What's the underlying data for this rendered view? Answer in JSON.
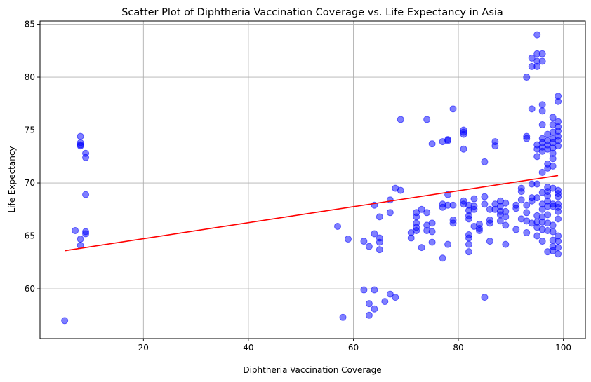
{
  "chart_data": {
    "type": "scatter",
    "title": "Scatter Plot of Diphtheria Vaccination Coverage vs. Life Expectancy in Asia",
    "xlabel": "Diphtheria Vaccination Coverage",
    "ylabel": "Life Expectancy",
    "xlim": [
      0.3,
      104.2
    ],
    "ylim": [
      55.3,
      85.3
    ],
    "xticks": [
      20,
      40,
      60,
      80,
      100
    ],
    "xtick_labels": [
      "20",
      "40",
      "60",
      "80",
      "100"
    ],
    "yticks": [
      60,
      65,
      70,
      75,
      80,
      85
    ],
    "ytick_labels": [
      "60",
      "65",
      "70",
      "75",
      "80",
      "85"
    ],
    "grid": true,
    "colors": {
      "points": "#0000ff",
      "trend": "#ff0000",
      "grid": "#b0b0b0"
    },
    "points": [
      [
        5,
        57.0
      ],
      [
        7,
        65.5
      ],
      [
        8,
        74.4
      ],
      [
        8,
        73.8
      ],
      [
        8,
        73.6
      ],
      [
        8,
        73.5
      ],
      [
        8,
        64.7
      ],
      [
        8,
        64.1
      ],
      [
        9,
        72.8
      ],
      [
        9,
        72.4
      ],
      [
        9,
        68.9
      ],
      [
        9,
        65.4
      ],
      [
        9,
        65.2
      ],
      [
        57,
        65.9
      ],
      [
        58,
        57.3
      ],
      [
        59,
        64.7
      ],
      [
        62,
        64.5
      ],
      [
        62,
        59.9
      ],
      [
        63,
        64.0
      ],
      [
        63,
        58.6
      ],
      [
        63,
        57.5
      ],
      [
        64,
        67.9
      ],
      [
        64,
        65.2
      ],
      [
        64,
        59.9
      ],
      [
        64,
        58.1
      ],
      [
        65,
        66.8
      ],
      [
        65,
        64.8
      ],
      [
        65,
        64.4
      ],
      [
        65,
        63.7
      ],
      [
        66,
        58.8
      ],
      [
        67,
        68.4
      ],
      [
        67,
        67.2
      ],
      [
        67,
        59.5
      ],
      [
        68,
        69.5
      ],
      [
        68,
        59.2
      ],
      [
        69,
        76.0
      ],
      [
        69,
        69.3
      ],
      [
        71,
        65.3
      ],
      [
        71,
        64.8
      ],
      [
        72,
        67.2
      ],
      [
        72,
        66.8
      ],
      [
        72,
        66.2
      ],
      [
        72,
        65.8
      ],
      [
        72,
        65.5
      ],
      [
        73,
        67.5
      ],
      [
        73,
        63.9
      ],
      [
        74,
        76.0
      ],
      [
        74,
        67.2
      ],
      [
        74,
        66.0
      ],
      [
        74,
        65.5
      ],
      [
        75,
        73.7
      ],
      [
        75,
        66.2
      ],
      [
        75,
        65.4
      ],
      [
        75,
        64.4
      ],
      [
        77,
        73.9
      ],
      [
        77,
        68.0
      ],
      [
        77,
        67.7
      ],
      [
        77,
        62.9
      ],
      [
        78,
        74.0
      ],
      [
        78,
        74.1
      ],
      [
        78,
        68.9
      ],
      [
        78,
        67.9
      ],
      [
        78,
        64.2
      ],
      [
        79,
        77.0
      ],
      [
        79,
        67.9
      ],
      [
        79,
        66.5
      ],
      [
        79,
        66.2
      ],
      [
        81,
        75.0
      ],
      [
        81,
        74.8
      ],
      [
        81,
        74.6
      ],
      [
        81,
        73.2
      ],
      [
        81,
        68.3
      ],
      [
        81,
        68.0
      ],
      [
        82,
        67.9
      ],
      [
        82,
        67.4
      ],
      [
        82,
        66.9
      ],
      [
        82,
        66.6
      ],
      [
        82,
        65.1
      ],
      [
        82,
        64.8
      ],
      [
        82,
        64.2
      ],
      [
        82,
        63.5
      ],
      [
        83,
        68.5
      ],
      [
        83,
        67.8
      ],
      [
        83,
        67.5
      ],
      [
        83,
        65.9
      ],
      [
        84,
        66.1
      ],
      [
        84,
        65.7
      ],
      [
        84,
        65.5
      ],
      [
        85,
        72.0
      ],
      [
        85,
        68.7
      ],
      [
        85,
        68.0
      ],
      [
        85,
        59.2
      ],
      [
        86,
        67.5
      ],
      [
        86,
        66.5
      ],
      [
        86,
        66.2
      ],
      [
        86,
        64.5
      ],
      [
        87,
        73.9
      ],
      [
        87,
        73.5
      ],
      [
        87,
        68.0
      ],
      [
        87,
        67.5
      ],
      [
        88,
        68.3
      ],
      [
        88,
        67.8
      ],
      [
        88,
        67.3
      ],
      [
        88,
        67.0
      ],
      [
        88,
        66.4
      ],
      [
        89,
        68.1
      ],
      [
        89,
        67.3
      ],
      [
        89,
        66.8
      ],
      [
        89,
        66.0
      ],
      [
        89,
        64.2
      ],
      [
        91,
        67.9
      ],
      [
        91,
        67.6
      ],
      [
        91,
        65.6
      ],
      [
        92,
        69.5
      ],
      [
        92,
        69.2
      ],
      [
        92,
        68.4
      ],
      [
        92,
        66.6
      ],
      [
        93,
        80.0
      ],
      [
        93,
        74.4
      ],
      [
        93,
        74.2
      ],
      [
        93,
        67.9
      ],
      [
        93,
        67.2
      ],
      [
        93,
        66.4
      ],
      [
        93,
        65.3
      ],
      [
        94,
        81.8
      ],
      [
        94,
        81.0
      ],
      [
        94,
        77.0
      ],
      [
        94,
        69.9
      ],
      [
        94,
        68.6
      ],
      [
        94,
        68.3
      ],
      [
        94,
        66.2
      ],
      [
        95,
        84.0
      ],
      [
        95,
        82.2
      ],
      [
        95,
        81.5
      ],
      [
        95,
        81.0
      ],
      [
        95,
        73.6
      ],
      [
        95,
        73.2
      ],
      [
        95,
        72.5
      ],
      [
        95,
        69.9
      ],
      [
        95,
        68.6
      ],
      [
        95,
        66.9
      ],
      [
        95,
        66.3
      ],
      [
        95,
        65.8
      ],
      [
        95,
        65.0
      ],
      [
        96,
        82.2
      ],
      [
        96,
        81.5
      ],
      [
        96,
        77.4
      ],
      [
        96,
        76.8
      ],
      [
        96,
        75.5
      ],
      [
        96,
        74.2
      ],
      [
        96,
        73.8
      ],
      [
        96,
        73.4
      ],
      [
        96,
        73.0
      ],
      [
        96,
        71.0
      ],
      [
        96,
        69.1
      ],
      [
        96,
        68.0
      ],
      [
        96,
        67.5
      ],
      [
        96,
        66.8
      ],
      [
        96,
        66.3
      ],
      [
        96,
        65.6
      ],
      [
        96,
        64.5
      ],
      [
        97,
        74.6
      ],
      [
        97,
        74.0
      ],
      [
        97,
        73.6
      ],
      [
        97,
        73.2
      ],
      [
        97,
        71.8
      ],
      [
        97,
        71.4
      ],
      [
        97,
        69.6
      ],
      [
        97,
        69.2
      ],
      [
        97,
        68.8
      ],
      [
        97,
        68.3
      ],
      [
        97,
        67.8
      ],
      [
        97,
        67.0
      ],
      [
        97,
        66.2
      ],
      [
        97,
        65.5
      ],
      [
        97,
        63.5
      ],
      [
        98,
        76.2
      ],
      [
        98,
        75.5
      ],
      [
        98,
        74.8
      ],
      [
        98,
        74.2
      ],
      [
        98,
        73.8
      ],
      [
        98,
        73.3
      ],
      [
        98,
        72.8
      ],
      [
        98,
        72.3
      ],
      [
        98,
        71.6
      ],
      [
        98,
        69.5
      ],
      [
        98,
        68.0
      ],
      [
        98,
        67.8
      ],
      [
        98,
        66.0
      ],
      [
        98,
        65.4
      ],
      [
        98,
        64.6
      ],
      [
        98,
        64.0
      ],
      [
        98,
        63.6
      ],
      [
        99,
        78.2
      ],
      [
        99,
        77.7
      ],
      [
        99,
        75.8
      ],
      [
        99,
        75.3
      ],
      [
        99,
        74.9
      ],
      [
        99,
        74.4
      ],
      [
        99,
        74.0
      ],
      [
        99,
        73.5
      ],
      [
        99,
        69.3
      ],
      [
        99,
        69.0
      ],
      [
        99,
        68.7
      ],
      [
        99,
        68.0
      ],
      [
        99,
        67.7
      ],
      [
        99,
        67.3
      ],
      [
        99,
        66.6
      ],
      [
        99,
        65.0
      ],
      [
        99,
        64.5
      ],
      [
        99,
        63.9
      ],
      [
        99,
        63.3
      ]
    ],
    "trend_line": {
      "x": [
        5,
        99
      ],
      "y": [
        63.6,
        70.7
      ]
    }
  }
}
